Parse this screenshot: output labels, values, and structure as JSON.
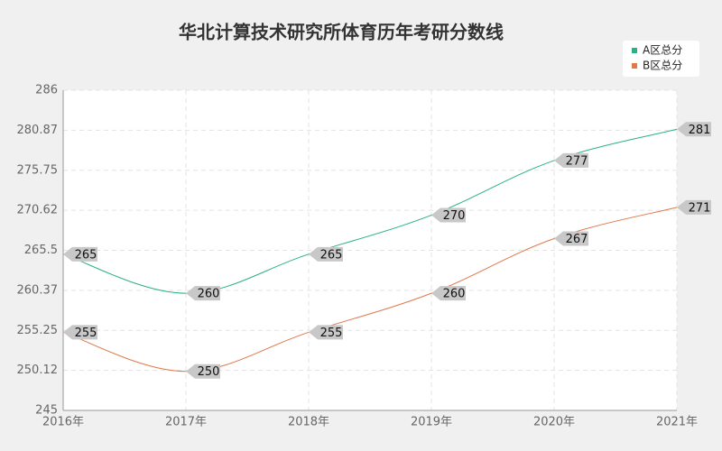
{
  "chart_data": {
    "type": "line",
    "title": "华北计算技术研究所体育历年考研分数线",
    "categories": [
      "2016年",
      "2017年",
      "2018年",
      "2019年",
      "2020年",
      "2021年"
    ],
    "series": [
      {
        "name": "A区总分",
        "color": "#2ab283",
        "values": [
          265,
          260,
          265,
          270,
          277,
          281
        ]
      },
      {
        "name": "B区总分",
        "color": "#e0784a",
        "values": [
          255,
          250,
          255,
          260,
          267,
          271
        ]
      }
    ],
    "ylim": [
      245,
      286
    ],
    "yticks": [
      245,
      250.12,
      255.25,
      260.37,
      265.5,
      270.62,
      275.75,
      280.87,
      286
    ],
    "grid": true,
    "legend": "top-right"
  }
}
